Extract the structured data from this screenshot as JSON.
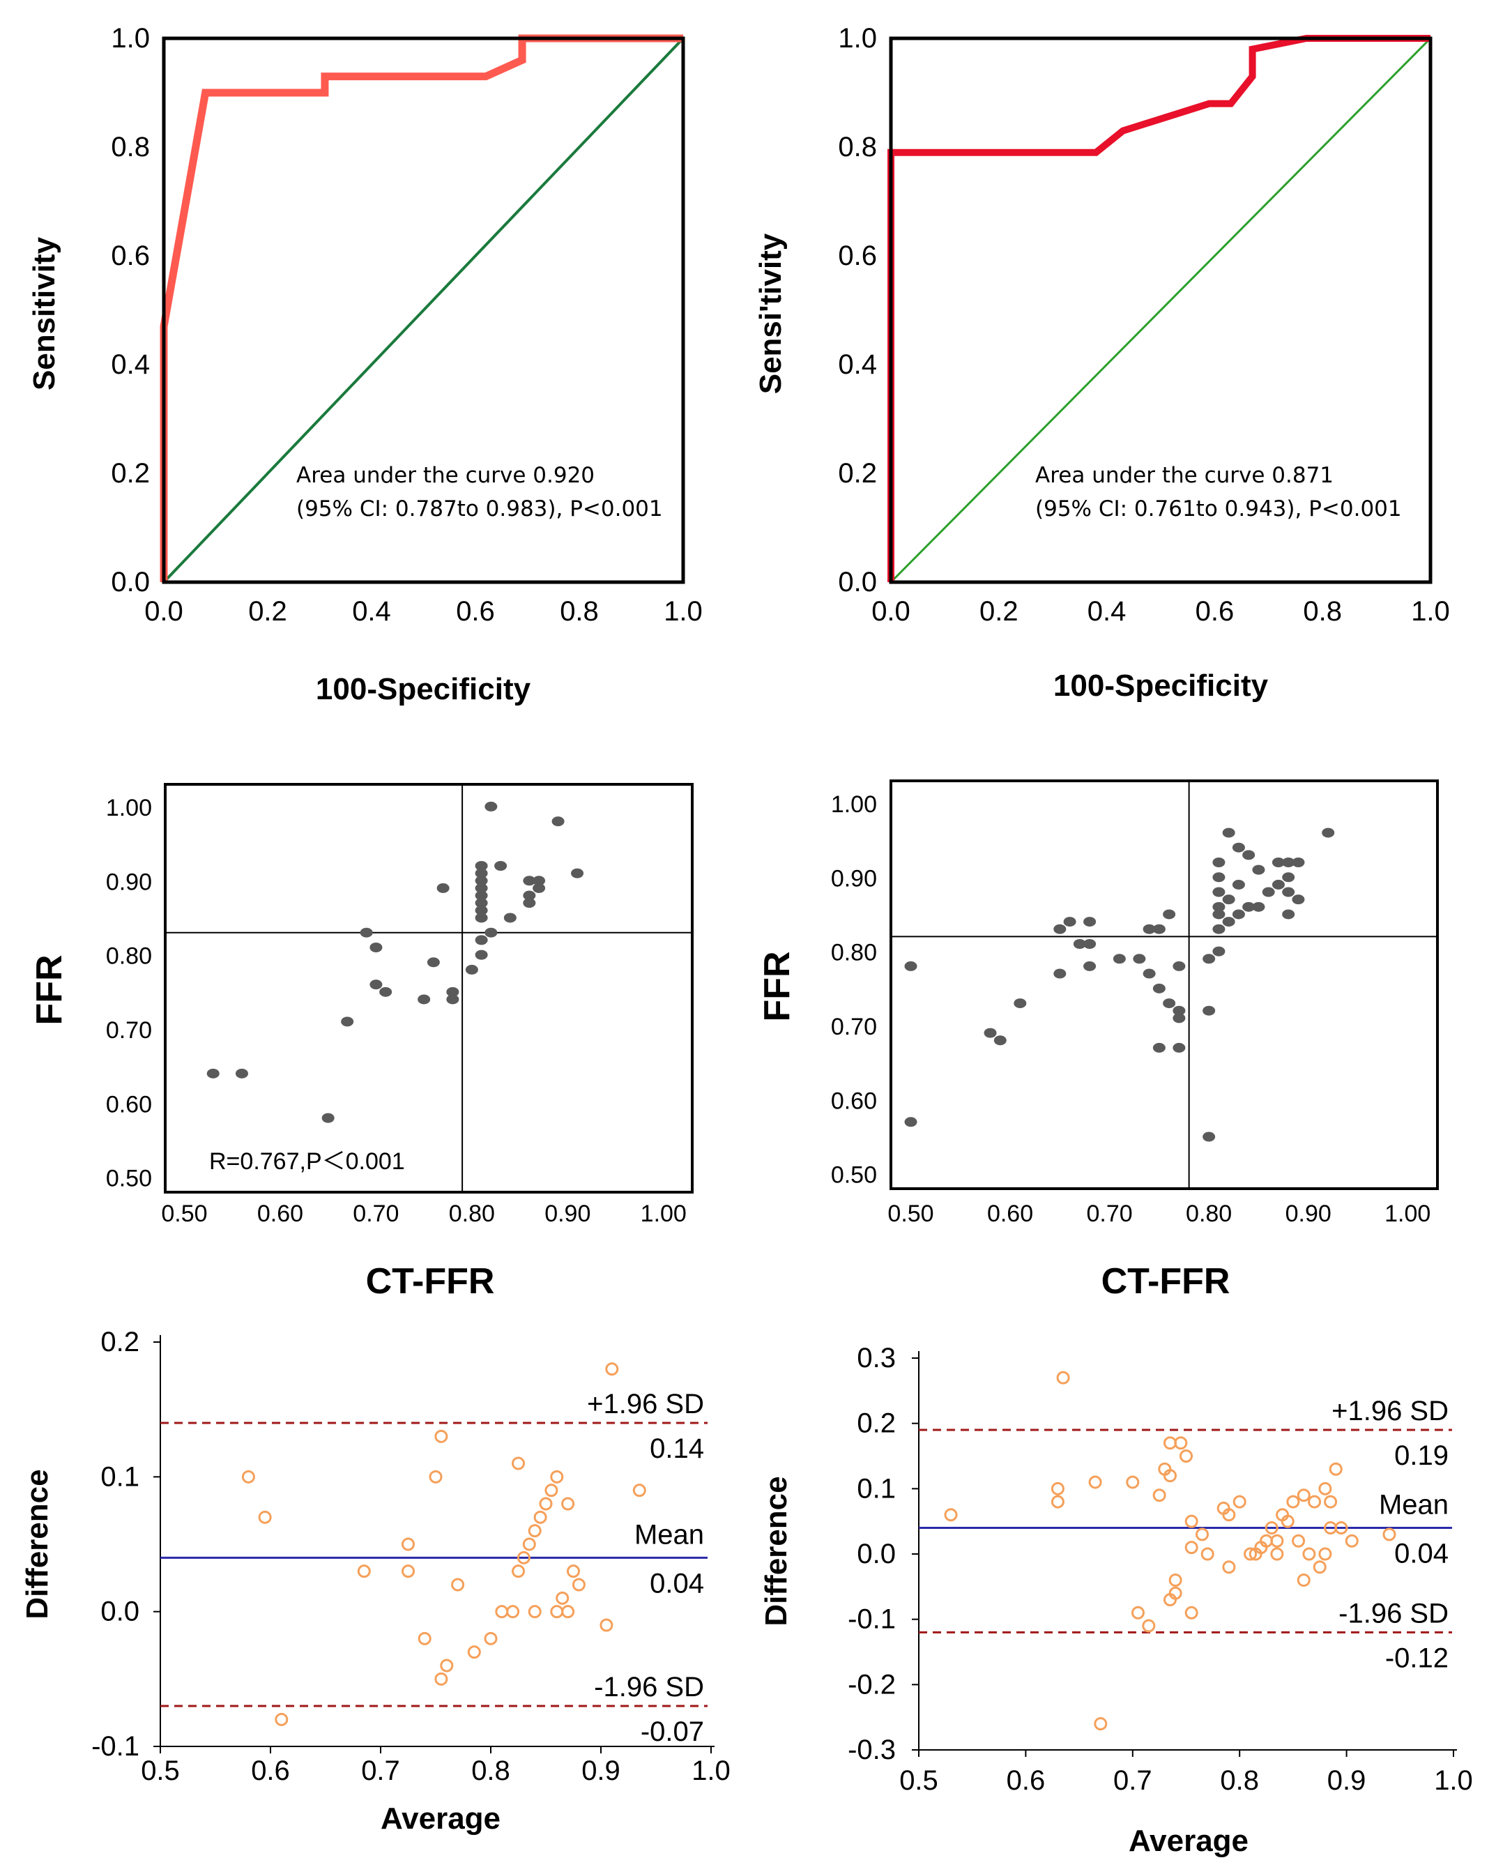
{
  "colors": {
    "roc_curve": "#ff5a50",
    "roc_curve_dark": "#e8102a",
    "diagonal": "#1a7a3c",
    "diagonal_light": "#2ca02c",
    "scatter_point": "#5a5a5a",
    "ba_point": "#f5a05a",
    "mean_line": "#2a2aa8",
    "sd_line": "#a01818"
  },
  "chart_data": [
    {
      "id": "roc-left",
      "type": "line",
      "xlabel": "100-Specificity",
      "ylabel": "Sensitivity",
      "xlim": [
        0,
        1
      ],
      "ylim": [
        0,
        1
      ],
      "xticks": [
        "0.0",
        "0.2",
        "0.4",
        "0.6",
        "0.8",
        "1.0"
      ],
      "yticks": [
        "0.0",
        "0.2",
        "0.4",
        "0.6",
        "0.8",
        "1.0"
      ],
      "note_line1": "Area under the curve 0.920",
      "note_line2": "(95% CI: 0.787to 0.983), P<0.001",
      "series": [
        {
          "values": [
            [
              0,
              0
            ],
            [
              0,
              0.47
            ],
            [
              0.08,
              0.9
            ],
            [
              0.31,
              0.9
            ],
            [
              0.31,
              0.93
            ],
            [
              0.62,
              0.93
            ],
            [
              0.69,
              0.96
            ],
            [
              0.69,
              1.0
            ],
            [
              1.0,
              1.0
            ]
          ]
        }
      ],
      "reference": [
        [
          0,
          0
        ],
        [
          1,
          1
        ]
      ]
    },
    {
      "id": "roc-right",
      "type": "line",
      "xlabel": "100-Specificity",
      "ylabel": "Sensi'tivity",
      "xlim": [
        0,
        1
      ],
      "ylim": [
        0,
        1
      ],
      "xticks": [
        "0.0",
        "0.2",
        "0.4",
        "0.6",
        "0.8",
        "1.0"
      ],
      "yticks": [
        "0.0",
        "0.2",
        "0.4",
        "0.6",
        "0.8",
        "1.0"
      ],
      "note_line1": "Area under the curve 0.871",
      "note_line2": "(95% CI: 0.761to 0.943), P<0.001",
      "series": [
        {
          "values": [
            [
              0,
              0
            ],
            [
              0,
              0.79
            ],
            [
              0.38,
              0.79
            ],
            [
              0.43,
              0.83
            ],
            [
              0.59,
              0.88
            ],
            [
              0.63,
              0.88
            ],
            [
              0.67,
              0.93
            ],
            [
              0.67,
              0.98
            ],
            [
              0.77,
              1.0
            ],
            [
              1.0,
              1.0
            ]
          ]
        }
      ],
      "reference": [
        [
          0,
          0
        ],
        [
          1,
          1
        ]
      ]
    },
    {
      "id": "scatter-left",
      "type": "scatter",
      "xlabel": "CT-FFR",
      "ylabel": "FFR",
      "xlim": [
        0.48,
        1.03
      ],
      "ylim": [
        0.48,
        1.03
      ],
      "xticks": [
        "0.50",
        "0.60",
        "0.70",
        "0.80",
        "0.90",
        "1.00"
      ],
      "yticks": [
        "0.50",
        "0.60",
        "0.70",
        "0.80",
        "0.90",
        "1.00"
      ],
      "cutoff_x": 0.79,
      "cutoff_y": 0.83,
      "annotation": "R=0.767,P＜0.001",
      "points": [
        [
          0.53,
          0.64
        ],
        [
          0.56,
          0.64
        ],
        [
          0.65,
          0.58
        ],
        [
          0.67,
          0.71
        ],
        [
          0.69,
          0.83
        ],
        [
          0.7,
          0.81
        ],
        [
          0.7,
          0.76
        ],
        [
          0.71,
          0.75
        ],
        [
          0.75,
          0.74
        ],
        [
          0.76,
          0.79
        ],
        [
          0.77,
          0.89
        ],
        [
          0.78,
          0.75
        ],
        [
          0.78,
          0.74
        ],
        [
          0.8,
          0.78
        ],
        [
          0.81,
          0.8
        ],
        [
          0.81,
          0.82
        ],
        [
          0.81,
          0.85
        ],
        [
          0.81,
          0.86
        ],
        [
          0.81,
          0.87
        ],
        [
          0.81,
          0.88
        ],
        [
          0.81,
          0.89
        ],
        [
          0.81,
          0.9
        ],
        [
          0.81,
          0.91
        ],
        [
          0.81,
          0.92
        ],
        [
          0.82,
          0.83
        ],
        [
          0.82,
          1.0
        ],
        [
          0.83,
          0.92
        ],
        [
          0.84,
          0.85
        ],
        [
          0.86,
          0.87
        ],
        [
          0.86,
          0.88
        ],
        [
          0.86,
          0.9
        ],
        [
          0.87,
          0.89
        ],
        [
          0.87,
          0.9
        ],
        [
          0.89,
          0.98
        ],
        [
          0.91,
          0.91
        ]
      ]
    },
    {
      "id": "scatter-right",
      "type": "scatter",
      "xlabel": "CT-FFR",
      "ylabel": "FFR",
      "xlim": [
        0.48,
        1.03
      ],
      "ylim": [
        0.48,
        1.03
      ],
      "xticks": [
        "0.50",
        "0.60",
        "0.70",
        "0.80",
        "0.90",
        "1.00"
      ],
      "yticks": [
        "0.50",
        "0.60",
        "0.70",
        "0.80",
        "0.90",
        "1.00"
      ],
      "cutoff_x": 0.78,
      "cutoff_y": 0.82,
      "points": [
        [
          0.5,
          0.78
        ],
        [
          0.5,
          0.57
        ],
        [
          0.58,
          0.69
        ],
        [
          0.59,
          0.68
        ],
        [
          0.61,
          0.73
        ],
        [
          0.65,
          0.77
        ],
        [
          0.65,
          0.83
        ],
        [
          0.66,
          0.84
        ],
        [
          0.67,
          0.81
        ],
        [
          0.68,
          0.78
        ],
        [
          0.68,
          0.81
        ],
        [
          0.68,
          0.84
        ],
        [
          0.71,
          0.79
        ],
        [
          0.73,
          0.79
        ],
        [
          0.74,
          0.77
        ],
        [
          0.74,
          0.83
        ],
        [
          0.75,
          0.67
        ],
        [
          0.75,
          0.75
        ],
        [
          0.75,
          0.83
        ],
        [
          0.76,
          0.73
        ],
        [
          0.76,
          0.85
        ],
        [
          0.77,
          0.67
        ],
        [
          0.77,
          0.71
        ],
        [
          0.77,
          0.72
        ],
        [
          0.77,
          0.78
        ],
        [
          0.8,
          0.55
        ],
        [
          0.8,
          0.72
        ],
        [
          0.8,
          0.79
        ],
        [
          0.81,
          0.8
        ],
        [
          0.81,
          0.83
        ],
        [
          0.81,
          0.85
        ],
        [
          0.81,
          0.86
        ],
        [
          0.81,
          0.88
        ],
        [
          0.81,
          0.9
        ],
        [
          0.81,
          0.92
        ],
        [
          0.82,
          0.84
        ],
        [
          0.82,
          0.87
        ],
        [
          0.82,
          0.96
        ],
        [
          0.83,
          0.85
        ],
        [
          0.83,
          0.89
        ],
        [
          0.83,
          0.94
        ],
        [
          0.84,
          0.86
        ],
        [
          0.84,
          0.93
        ],
        [
          0.85,
          0.86
        ],
        [
          0.85,
          0.91
        ],
        [
          0.86,
          0.88
        ],
        [
          0.87,
          0.89
        ],
        [
          0.87,
          0.92
        ],
        [
          0.88,
          0.85
        ],
        [
          0.88,
          0.88
        ],
        [
          0.88,
          0.9
        ],
        [
          0.88,
          0.92
        ],
        [
          0.89,
          0.87
        ],
        [
          0.89,
          0.92
        ],
        [
          0.92,
          0.96
        ]
      ]
    },
    {
      "id": "ba-left",
      "type": "scatter",
      "xlabel": "Average",
      "ylabel": "Difference",
      "xlim": [
        0.5,
        1.0
      ],
      "ylim": [
        -0.1,
        0.2
      ],
      "xticks": [
        "0.5",
        "0.6",
        "0.7",
        "0.8",
        "0.9",
        "1.0"
      ],
      "yticks": [
        "-0.1",
        "0.0",
        "0.1",
        "0.2"
      ],
      "mean": 0.04,
      "upper": 0.14,
      "lower": -0.07,
      "upper_label": "+1.96 SD",
      "upper_value": "0.14",
      "mean_label": "Mean",
      "mean_value": "0.04",
      "lower_label": "-1.96 SD",
      "lower_value": "-0.07",
      "points": [
        [
          0.58,
          0.1
        ],
        [
          0.595,
          0.07
        ],
        [
          0.61,
          -0.08
        ],
        [
          0.685,
          0.03
        ],
        [
          0.725,
          0.05
        ],
        [
          0.725,
          0.03
        ],
        [
          0.74,
          -0.02
        ],
        [
          0.75,
          0.1
        ],
        [
          0.755,
          0.13
        ],
        [
          0.755,
          -0.05
        ],
        [
          0.76,
          -0.04
        ],
        [
          0.77,
          0.02
        ],
        [
          0.785,
          -0.03
        ],
        [
          0.8,
          -0.02
        ],
        [
          0.81,
          0.0
        ],
        [
          0.82,
          0.0
        ],
        [
          0.825,
          0.11
        ],
        [
          0.825,
          0.03
        ],
        [
          0.83,
          0.04
        ],
        [
          0.835,
          0.05
        ],
        [
          0.84,
          0.06
        ],
        [
          0.84,
          0.0
        ],
        [
          0.845,
          0.07
        ],
        [
          0.85,
          0.08
        ],
        [
          0.855,
          0.09
        ],
        [
          0.86,
          0.1
        ],
        [
          0.86,
          0.0
        ],
        [
          0.865,
          0.01
        ],
        [
          0.87,
          0.0
        ],
        [
          0.87,
          0.08
        ],
        [
          0.875,
          0.03
        ],
        [
          0.88,
          0.02
        ],
        [
          0.905,
          -0.01
        ],
        [
          0.91,
          0.18
        ],
        [
          0.935,
          0.09
        ]
      ]
    },
    {
      "id": "ba-right",
      "type": "scatter",
      "xlabel": "Average",
      "ylabel": "Difference",
      "xlim": [
        0.5,
        1.0
      ],
      "ylim": [
        -0.3,
        0.3
      ],
      "xticks": [
        "0.5",
        "0.6",
        "0.7",
        "0.8",
        "0.9",
        "1.0"
      ],
      "yticks": [
        "-0.3",
        "-0.2",
        "-0.1",
        "0.0",
        "0.1",
        "0.2",
        "0.3"
      ],
      "mean": 0.04,
      "upper": 0.19,
      "lower": -0.12,
      "upper_label": "+1.96 SD",
      "upper_value": "0.19",
      "mean_label": "Mean",
      "mean_value": "0.04",
      "lower_label": "-1.96 SD",
      "lower_value": "-0.12",
      "points": [
        [
          0.53,
          0.06
        ],
        [
          0.63,
          0.1
        ],
        [
          0.63,
          0.08
        ],
        [
          0.635,
          0.27
        ],
        [
          0.665,
          0.11
        ],
        [
          0.67,
          -0.26
        ],
        [
          0.7,
          0.11
        ],
        [
          0.705,
          -0.09
        ],
        [
          0.715,
          -0.11
        ],
        [
          0.725,
          0.09
        ],
        [
          0.73,
          0.13
        ],
        [
          0.735,
          0.17
        ],
        [
          0.735,
          0.12
        ],
        [
          0.735,
          -0.07
        ],
        [
          0.74,
          -0.04
        ],
        [
          0.74,
          -0.06
        ],
        [
          0.745,
          0.17
        ],
        [
          0.75,
          0.15
        ],
        [
          0.755,
          0.05
        ],
        [
          0.755,
          0.01
        ],
        [
          0.755,
          -0.09
        ],
        [
          0.765,
          0.03
        ],
        [
          0.77,
          0.0
        ],
        [
          0.785,
          0.07
        ],
        [
          0.79,
          0.06
        ],
        [
          0.79,
          -0.02
        ],
        [
          0.8,
          0.08
        ],
        [
          0.81,
          0.0
        ],
        [
          0.815,
          0.0
        ],
        [
          0.82,
          0.01
        ],
        [
          0.825,
          0.02
        ],
        [
          0.83,
          0.04
        ],
        [
          0.835,
          0.0
        ],
        [
          0.835,
          0.02
        ],
        [
          0.84,
          0.06
        ],
        [
          0.845,
          0.05
        ],
        [
          0.85,
          0.08
        ],
        [
          0.855,
          0.02
        ],
        [
          0.86,
          0.09
        ],
        [
          0.86,
          -0.04
        ],
        [
          0.865,
          0.0
        ],
        [
          0.87,
          0.08
        ],
        [
          0.875,
          -0.02
        ],
        [
          0.88,
          0.0
        ],
        [
          0.88,
          0.1
        ],
        [
          0.885,
          0.04
        ],
        [
          0.885,
          0.08
        ],
        [
          0.89,
          0.13
        ],
        [
          0.895,
          0.04
        ],
        [
          0.905,
          0.02
        ],
        [
          0.94,
          0.03
        ]
      ]
    }
  ]
}
